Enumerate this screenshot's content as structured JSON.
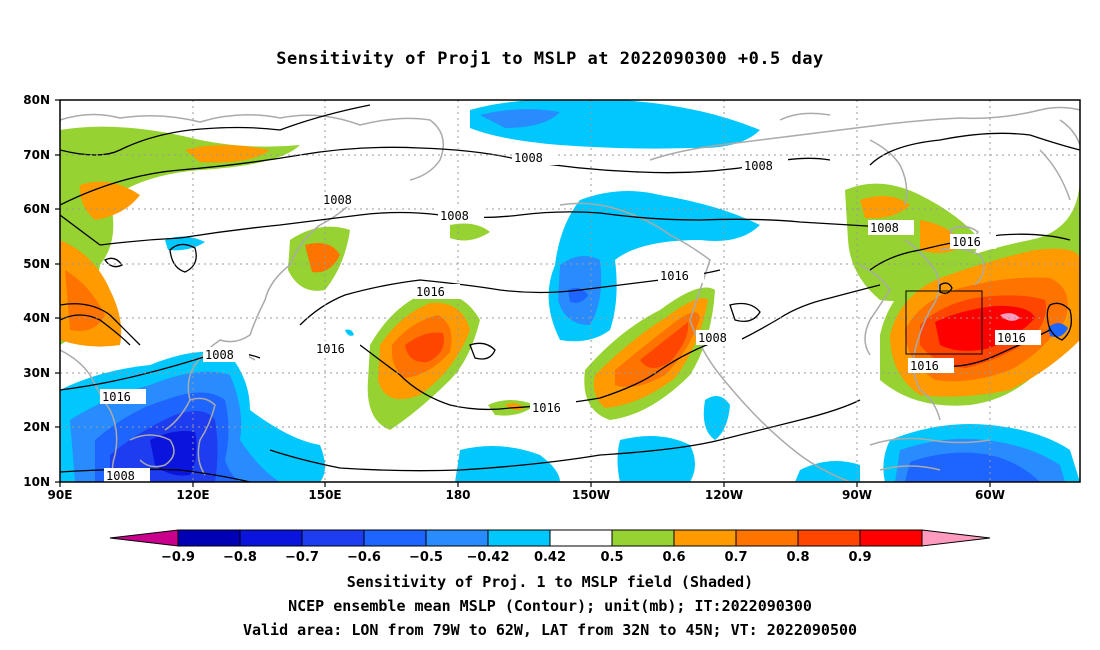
{
  "title": "Sensitivity of Proj1 to MSLP at 2022090300 +0.5 day",
  "lat_labels": [
    "80N",
    "70N",
    "60N",
    "50N",
    "40N",
    "30N",
    "20N",
    "10N"
  ],
  "lon_labels": [
    "90E",
    "120E",
    "150E",
    "180",
    "150W",
    "120W",
    "90W",
    "60W"
  ],
  "contour_labels": {
    "l1008_a": "1008",
    "l1008_b": "1008",
    "l1008_c": "1008",
    "l1008_d": "1008",
    "l1008_e": "1008",
    "l1008_f": "1008",
    "l1008_g": "1008",
    "l1008_h": "1008",
    "l1016_a": "1016",
    "l1016_b": "1016",
    "l1016_c": "1016",
    "l1016_d": "1016",
    "l1016_e": "1016",
    "l1016_f": "1016",
    "l1016_g": "1016",
    "l1016_h": "1016"
  },
  "colorbar": {
    "labels": [
      "−0.9",
      "−0.8",
      "−0.7",
      "−0.6",
      "−0.5",
      "−0.42",
      "0.42",
      "0.5",
      "0.6",
      "0.7",
      "0.8",
      "0.9"
    ],
    "colors": [
      "#c8008c",
      "#0000b4",
      "#0a14dc",
      "#1e3cf0",
      "#1e64ff",
      "#288cff",
      "#00c8ff",
      "#ffffff",
      "#96d232",
      "#ff9b00",
      "#ff7300",
      "#ff4600",
      "#ff0000",
      "#ff9bbe"
    ]
  },
  "footer": {
    "line1": "Sensitivity of Proj. 1 to MSLP field (Shaded)",
    "line2": "NCEP ensemble mean MSLP (Contour); unit(mb); IT:2022090300",
    "line3": "Valid area: LON from 79W to 62W, LAT from 32N to 45N; VT: 2022090500"
  }
}
